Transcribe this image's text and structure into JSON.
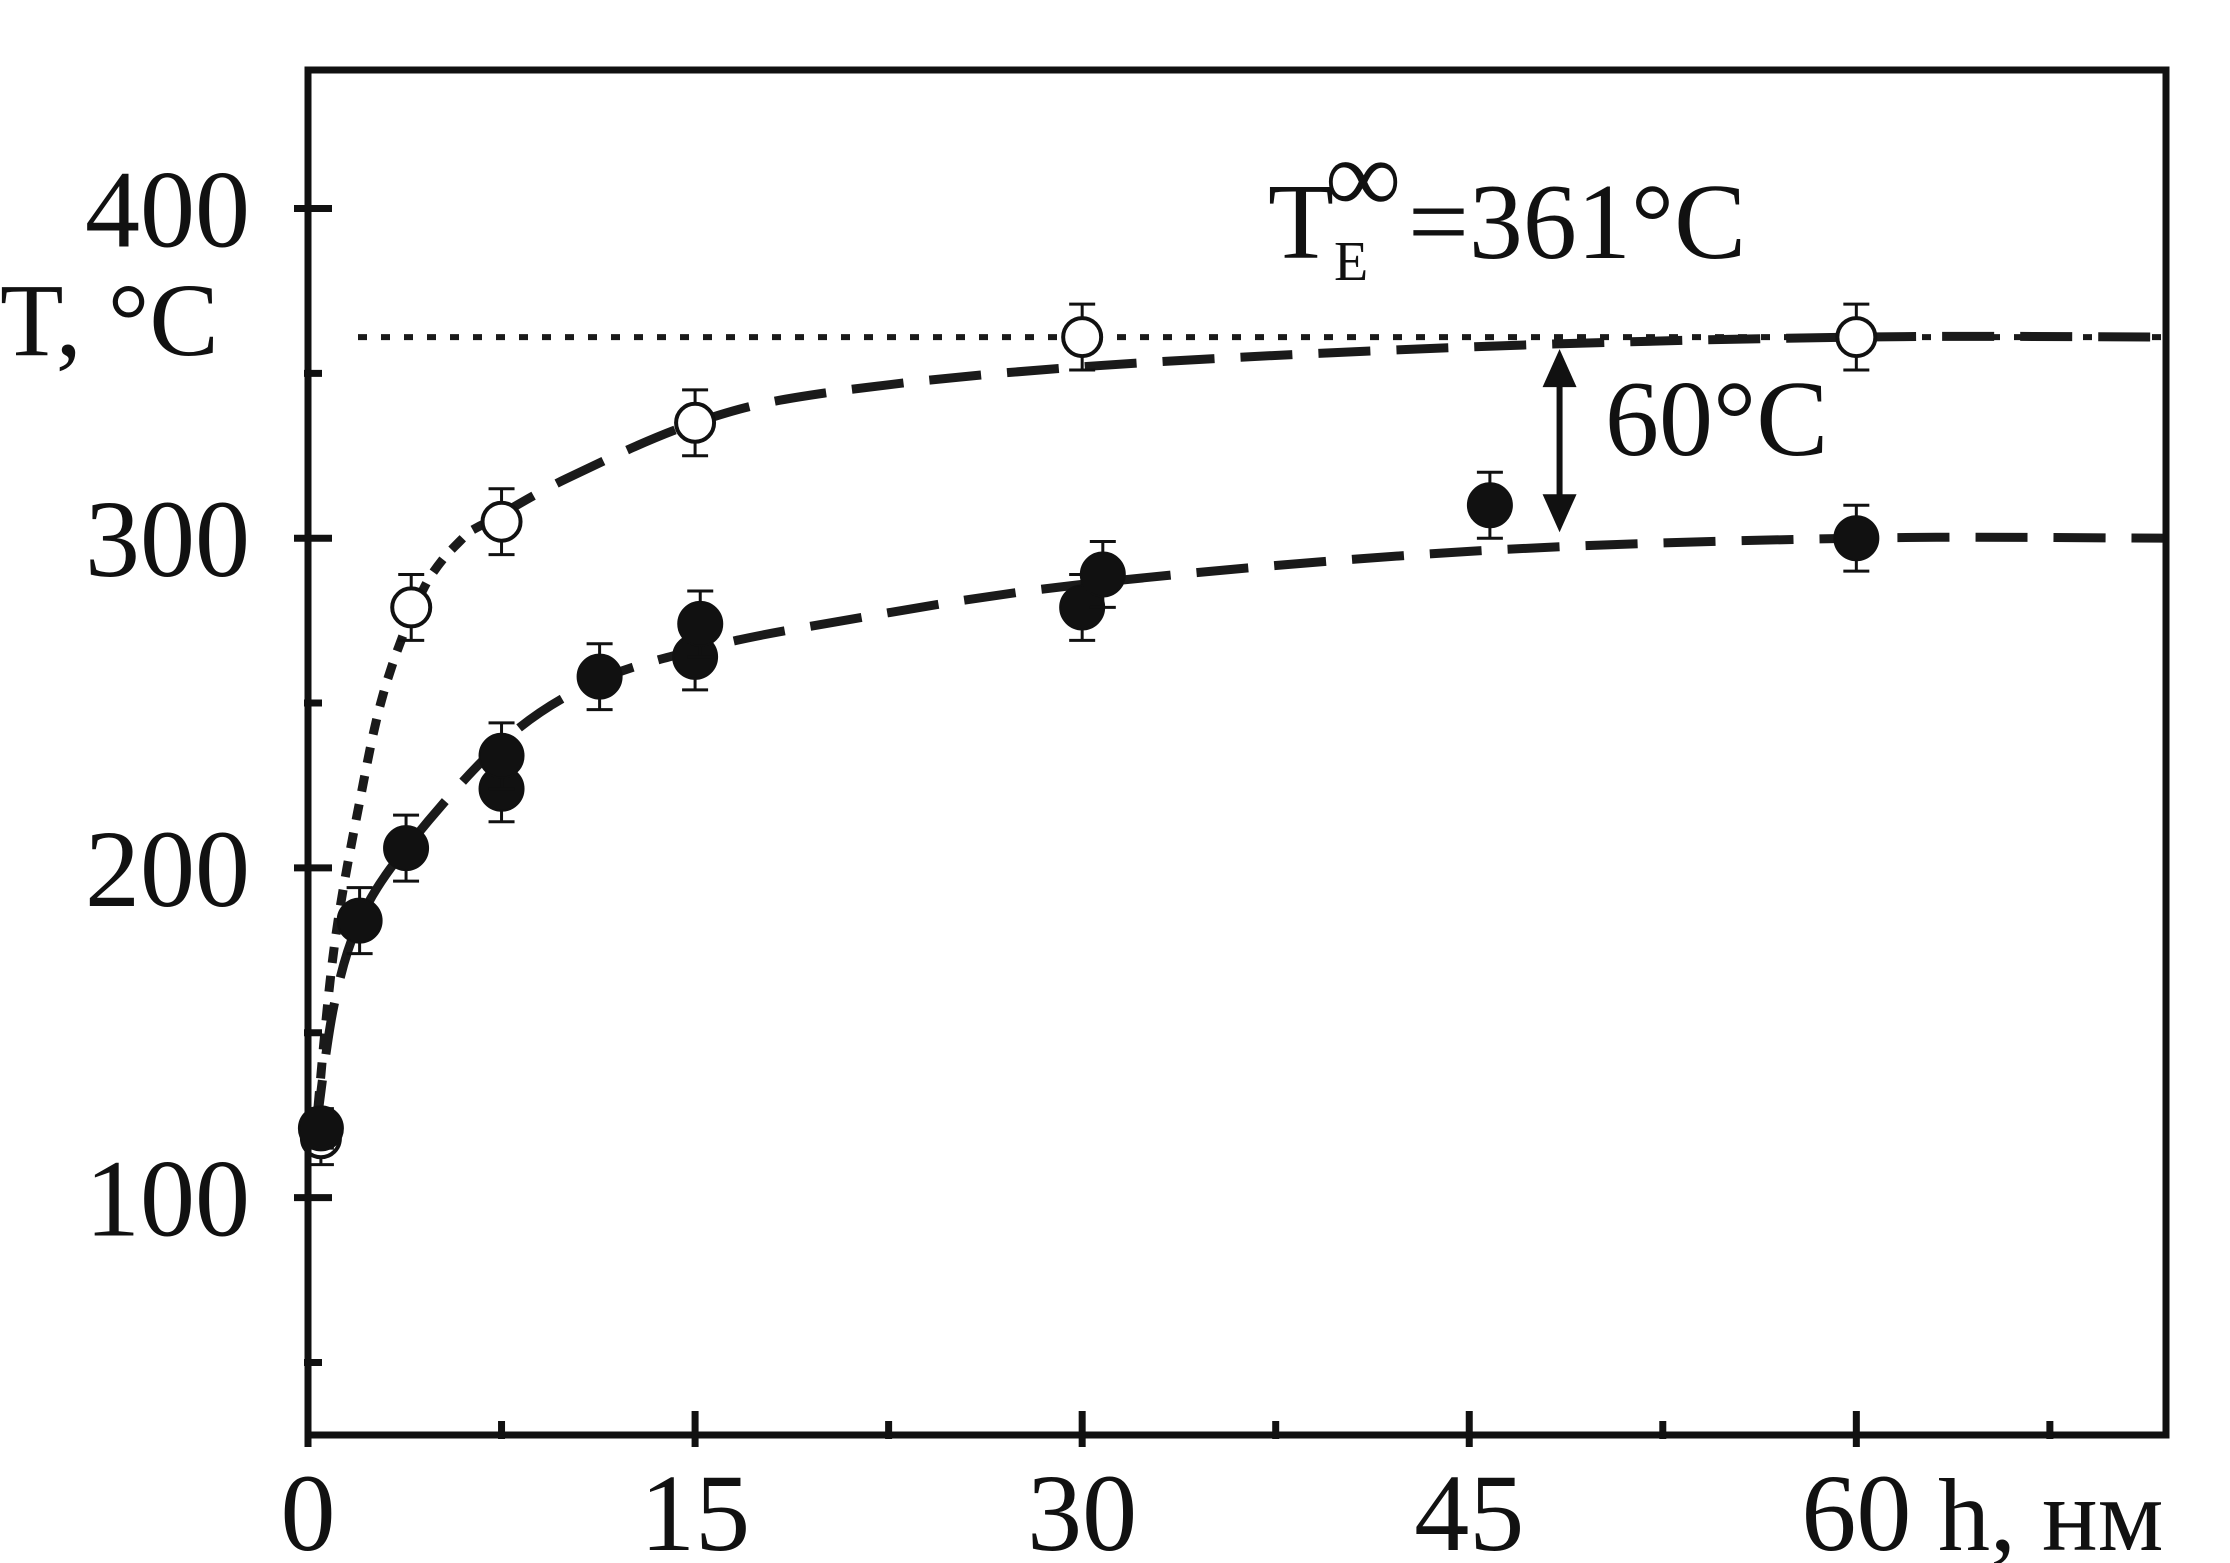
{
  "chart_data": {
    "type": "scatter",
    "xlabel": "h, нм",
    "ylabel": "T, °C",
    "xlim": [
      0,
      72
    ],
    "ylim": [
      28,
      442
    ],
    "x_ticks": [
      0,
      15,
      30,
      45,
      60
    ],
    "y_ticks": [
      100,
      200,
      300,
      400
    ],
    "x_tick_labels": [
      "0",
      "15",
      "30",
      "45",
      "60"
    ],
    "y_tick_labels": [
      "100",
      "200",
      "300",
      "400"
    ],
    "x_minor_ticks": [
      7.5,
      22.5,
      37.5,
      52.5,
      67.5
    ],
    "y_minor_ticks": [
      50,
      150,
      250,
      350
    ],
    "grid": false,
    "series": [
      {
        "marker": "open-circle",
        "x": [
          0.5,
          4,
          7.5,
          15,
          30,
          60
        ],
        "y": [
          118,
          279,
          305,
          335,
          361,
          361
        ],
        "error": [
          8,
          10,
          10,
          10,
          10,
          10
        ]
      },
      {
        "marker": "filled-circle",
        "x": [
          0.5,
          2,
          3.8,
          7.5,
          7.5,
          11.3,
          15,
          15.2,
          30,
          30.8,
          45.8,
          60
        ],
        "y": [
          121,
          184,
          206,
          224,
          234,
          258,
          264,
          274,
          279,
          289,
          310,
          300
        ],
        "error": [
          6,
          10,
          10,
          10,
          10,
          10,
          10,
          10,
          10,
          10,
          10,
          10
        ]
      }
    ],
    "fits": [
      {
        "style": "dashed",
        "x": [
          7,
          10,
          15,
          20,
          30,
          45,
          60,
          72
        ],
        "y": [
          305,
          318,
          335,
          344,
          352,
          358,
          361,
          361
        ]
      },
      {
        "style": "dotted",
        "x": [
          0.3,
          1,
          2,
          3,
          4.5,
          6,
          7
        ],
        "y": [
          120,
          175,
          220,
          255,
          285,
          300,
          305
        ]
      },
      {
        "style": "dashed",
        "x": [
          0.3,
          1,
          2,
          3.8,
          7.5,
          11,
          15,
          20,
          30,
          45,
          60,
          72
        ],
        "y": [
          120,
          158,
          184,
          206,
          238,
          256,
          266,
          274,
          286,
          296,
          300,
          300
        ]
      }
    ],
    "reference_line": {
      "y": 361,
      "style": "dotted",
      "label_main": "T",
      "label_sub": "E",
      "label_sup": "∞",
      "label_value": "=361°C"
    },
    "difference_annotation": {
      "y_from": 300,
      "y_to": 361,
      "x": 48.5,
      "label": "60°C"
    }
  }
}
